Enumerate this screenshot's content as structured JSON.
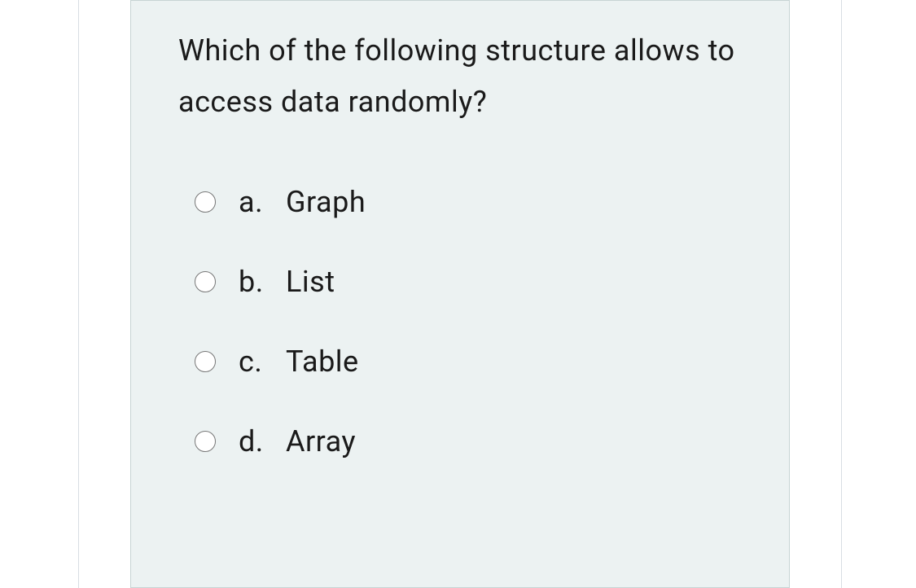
{
  "question": {
    "text": "Which of the following structure allows to access data randomly?",
    "options": [
      {
        "letter": "a.",
        "label": "Graph",
        "selected": false
      },
      {
        "letter": "b.",
        "label": "List",
        "selected": false
      },
      {
        "letter": "c.",
        "label": "Table",
        "selected": false
      },
      {
        "letter": "d.",
        "label": "Array",
        "selected": false
      }
    ]
  },
  "colors": {
    "card_bg": "#ecf2f2",
    "card_border": "#c7d4d4",
    "outer_border": "#d8dee3",
    "text": "#1a1a1a"
  }
}
